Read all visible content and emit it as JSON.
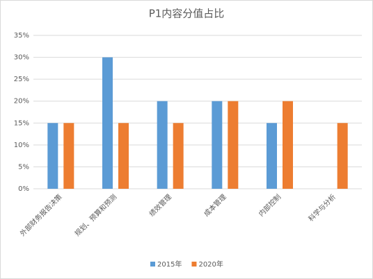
{
  "chart_data": {
    "type": "bar",
    "title": "P1内容分值占比",
    "categories": [
      "外部财务报告决策",
      "规划、预算和预测",
      "绩效管理",
      "成本管理",
      "内部控制",
      "科学与分析"
    ],
    "series": [
      {
        "name": "2015年",
        "color": "#5b9bd5",
        "values": [
          15,
          30,
          20,
          20,
          15,
          null
        ]
      },
      {
        "name": "2020年",
        "color": "#ed7d31",
        "values": [
          15,
          15,
          15,
          20,
          20,
          15
        ]
      }
    ],
    "ylim": [
      0,
      35
    ],
    "yticks": [
      {
        "value": 0,
        "label": "0%"
      },
      {
        "value": 5,
        "label": "5%"
      },
      {
        "value": 10,
        "label": "10%"
      },
      {
        "value": 15,
        "label": "15%"
      },
      {
        "value": 20,
        "label": "20%"
      },
      {
        "value": 25,
        "label": "25%"
      },
      {
        "value": 30,
        "label": "30%"
      },
      {
        "value": 35,
        "label": "35%"
      }
    ],
    "grid": true
  }
}
